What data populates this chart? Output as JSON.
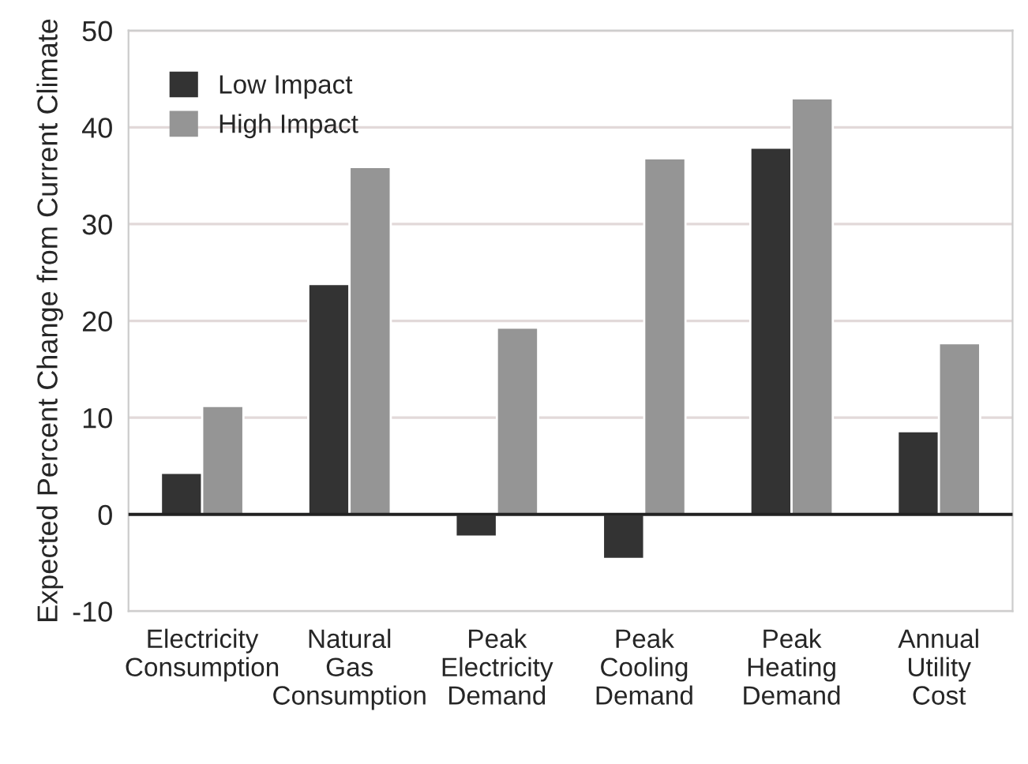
{
  "chart_data": {
    "type": "bar",
    "ylabel": "Expected Percent Change from Current Climate",
    "categories": [
      "Electricity\nConsumption",
      "Natural\nGas\nConsumption",
      "Peak\nElectricity\nDemand",
      "Peak\nCooling\nDemand",
      "Peak\nHeating\nDemand",
      "Annual\nUtility\nCost"
    ],
    "series": [
      {
        "name": "Low Impact",
        "color": "#333333",
        "values": [
          4.3,
          23.8,
          -2.3,
          -4.6,
          37.9,
          8.6
        ]
      },
      {
        "name": "High Impact",
        "color": "#959595",
        "values": [
          11.2,
          35.9,
          19.3,
          36.8,
          43.0,
          17.7
        ]
      }
    ],
    "ylim": [
      -10,
      50
    ],
    "yticks": [
      -10,
      0,
      10,
      20,
      30,
      40,
      50
    ],
    "grid": "y",
    "legend": "top left"
  }
}
